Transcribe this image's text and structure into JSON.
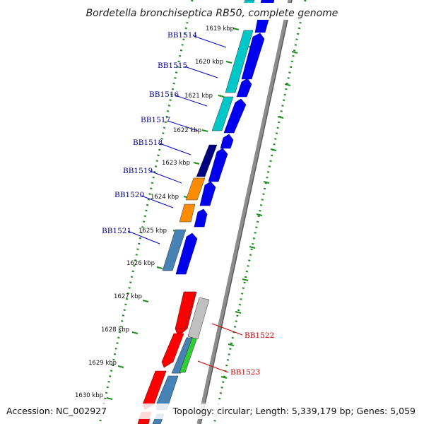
{
  "title": "Bordetella bronchiseptica RB50, complete genome",
  "accession_text": "Accession: NC_002927",
  "topology_text": "Topology: circular; Length: 5,339,179 bp; Genes: 5,059",
  "colors": {
    "backbone": "#8c8c8c",
    "ruler_dots": "#1e8c1e",
    "forward_arrows": "#0000ee",
    "label_blue": "#00008b",
    "label_red": "#cc0000"
  },
  "ruler_ticks": [
    {
      "label": "1619 kbp"
    },
    {
      "label": "1620 kbp"
    },
    {
      "label": "1621 kbp"
    },
    {
      "label": "1622 kbp"
    },
    {
      "label": "1623 kbp"
    },
    {
      "label": "1624 kbp"
    },
    {
      "label": "1625 kbp"
    },
    {
      "label": "1626 kbp"
    },
    {
      "label": "1627 kbp"
    },
    {
      "label": "1628 kbp"
    },
    {
      "label": "1629 kbp"
    },
    {
      "label": "1630 kbp"
    }
  ],
  "gene_labels": [
    {
      "name": "BB1514",
      "color": "blue"
    },
    {
      "name": "BB1515",
      "color": "blue"
    },
    {
      "name": "BB1516",
      "color": "blue"
    },
    {
      "name": "BB1517",
      "color": "blue"
    },
    {
      "name": "BB1518",
      "color": "blue"
    },
    {
      "name": "BB1519",
      "color": "blue"
    },
    {
      "name": "BB1520",
      "color": "blue"
    },
    {
      "name": "BB1521",
      "color": "blue"
    },
    {
      "name": "BB1522",
      "color": "red"
    },
    {
      "name": "BB1523",
      "color": "red"
    }
  ],
  "inner_features": [
    {
      "color": "#00c8c8",
      "icon": "cyan-feature-block"
    },
    {
      "color": "#00c8c8",
      "icon": "cyan-feature-block"
    },
    {
      "color": "#00c8c8",
      "icon": "cyan-feature-block"
    },
    {
      "color": "#000080",
      "icon": "navy-feature-block"
    },
    {
      "color": "#ff8c00",
      "icon": "orange-feature-block"
    },
    {
      "color": "#ff8c00",
      "icon": "orange-feature-block"
    },
    {
      "color": "#4682b4",
      "icon": "steelblue-feature-block"
    },
    {
      "color": "#ff0000",
      "icon": "red-feature-block"
    },
    {
      "color": "#4682b4",
      "icon": "steelblue-feature-block"
    },
    {
      "color": "#32cd32",
      "icon": "green-feature-block"
    },
    {
      "color": "#c0c0c0",
      "icon": "grey-feature-block"
    }
  ]
}
